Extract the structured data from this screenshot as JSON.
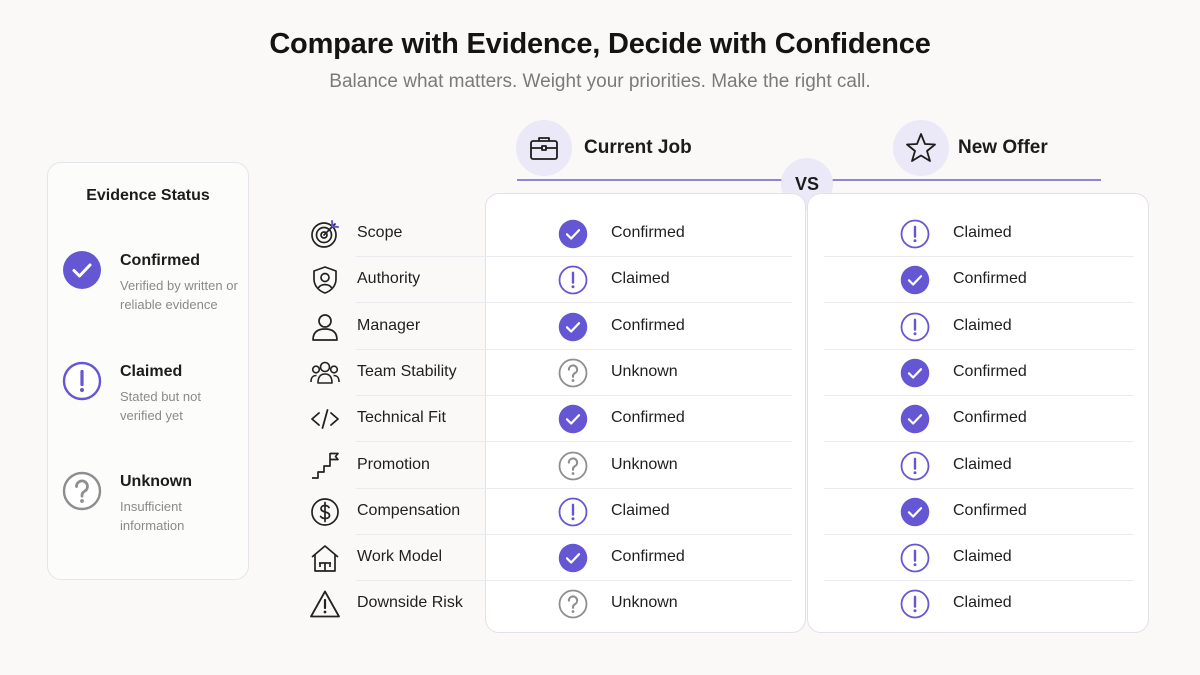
{
  "header": {
    "title": "Compare with Evidence, Decide with Confidence",
    "subtitle": "Balance what matters. Weight your priorities. Make the right call."
  },
  "legend": {
    "title": "Evidence Status",
    "items": [
      {
        "status": "confirmed",
        "label": "Confirmed",
        "desc": "Verified by written or reliable evidence"
      },
      {
        "status": "claimed",
        "label": "Claimed",
        "desc": "Stated but not verified yet"
      },
      {
        "status": "unknown",
        "label": "Unknown",
        "desc": "Insufficient information"
      }
    ]
  },
  "columns": {
    "current": {
      "label": "Current Job",
      "icon": "briefcase-icon"
    },
    "new": {
      "label": "New Offer",
      "icon": "star-icon"
    },
    "vs_label": "VS"
  },
  "status_labels": {
    "confirmed": "Confirmed",
    "claimed": "Claimed",
    "unknown": "Unknown"
  },
  "rows": [
    {
      "category": "Scope",
      "icon": "target-icon",
      "current": "confirmed",
      "new": "claimed"
    },
    {
      "category": "Authority",
      "icon": "shield-user-icon",
      "current": "claimed",
      "new": "confirmed"
    },
    {
      "category": "Manager",
      "icon": "person-icon",
      "current": "confirmed",
      "new": "claimed"
    },
    {
      "category": "Team Stability",
      "icon": "team-icon",
      "current": "unknown",
      "new": "confirmed"
    },
    {
      "category": "Technical Fit",
      "icon": "code-icon",
      "current": "confirmed",
      "new": "confirmed"
    },
    {
      "category": "Promotion",
      "icon": "stairs-flag-icon",
      "current": "unknown",
      "new": "claimed"
    },
    {
      "category": "Compensation",
      "icon": "dollar-icon",
      "current": "claimed",
      "new": "confirmed"
    },
    {
      "category": "Work Model",
      "icon": "house-desk-icon",
      "current": "confirmed",
      "new": "claimed"
    },
    {
      "category": "Downside Risk",
      "icon": "warning-icon",
      "current": "unknown",
      "new": "claimed"
    }
  ],
  "colors": {
    "accent": "#6557d3",
    "accent_soft": "#ebe9f7",
    "unknown_gray": "#8e8e8e"
  }
}
